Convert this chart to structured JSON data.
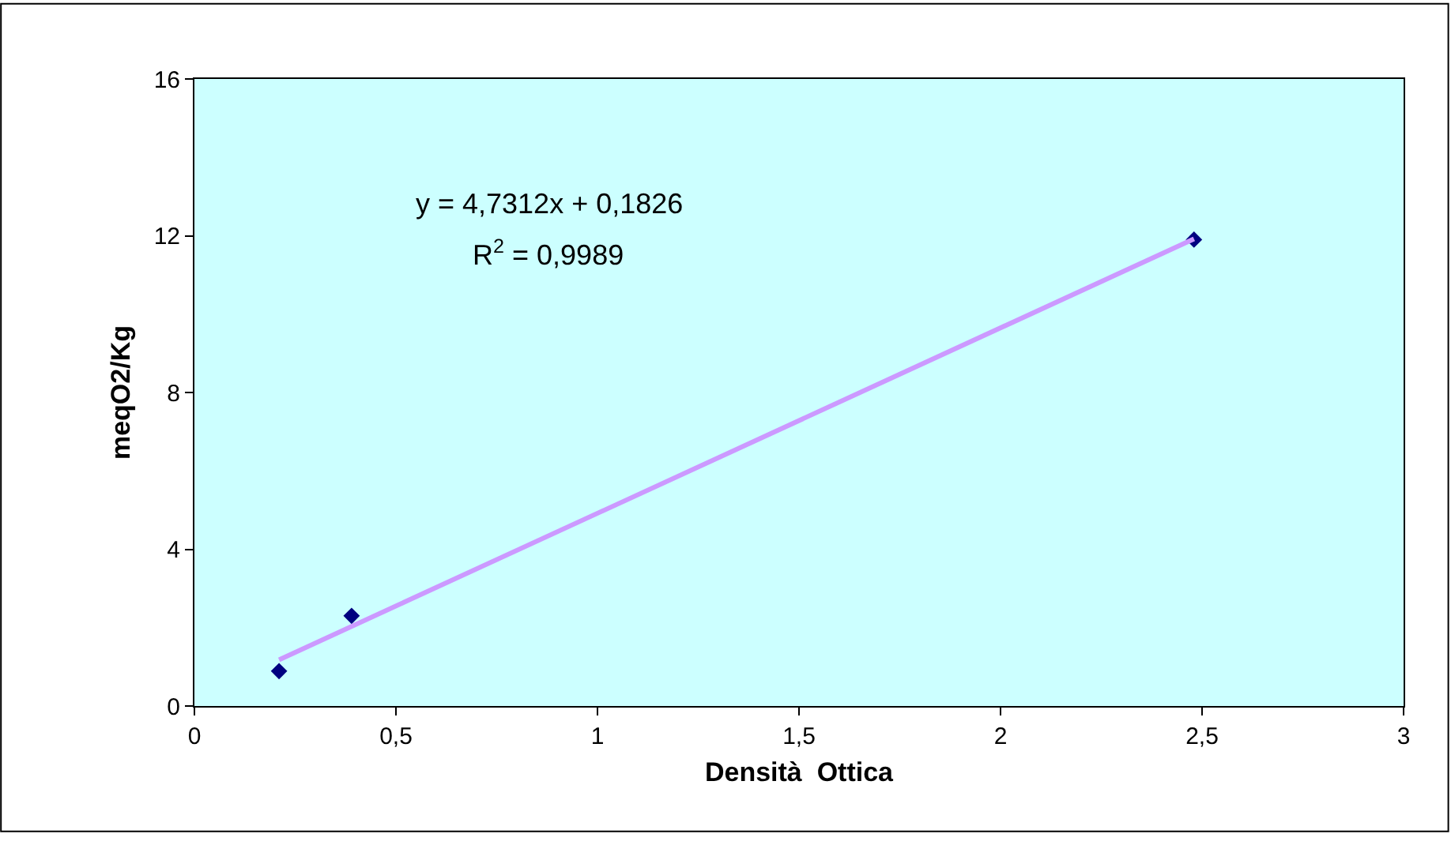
{
  "chart_data": {
    "type": "scatter",
    "xlabel": "Densità  Ottica",
    "ylabel": "meqO2/Kg",
    "series": [
      {
        "color": "#000080",
        "marker": "diamond",
        "x": [
          0.21,
          0.39,
          2.48
        ],
        "values": [
          0.89,
          2.3,
          11.9
        ]
      },
      {
        "type": "line",
        "color": "#cc99ff",
        "marker": "none",
        "x": [
          0.21,
          2.48
        ],
        "values": [
          1.18,
          11.92
        ]
      }
    ],
    "xlim": [
      0,
      3
    ],
    "xticks": [
      0,
      {
        "value": 0.5,
        "label": "0,5"
      },
      1,
      {
        "value": 1.5,
        "label": "1,5"
      },
      2,
      {
        "value": 2.5,
        "label": "2,5"
      },
      3
    ],
    "ylim": [
      0,
      16
    ],
    "yticks": [
      0,
      4,
      8,
      12,
      16
    ],
    "annotations": [
      "y = 4,7312x + 0,1826",
      "R$^{2}$ = 0,9989"
    ],
    "grid": false
  }
}
